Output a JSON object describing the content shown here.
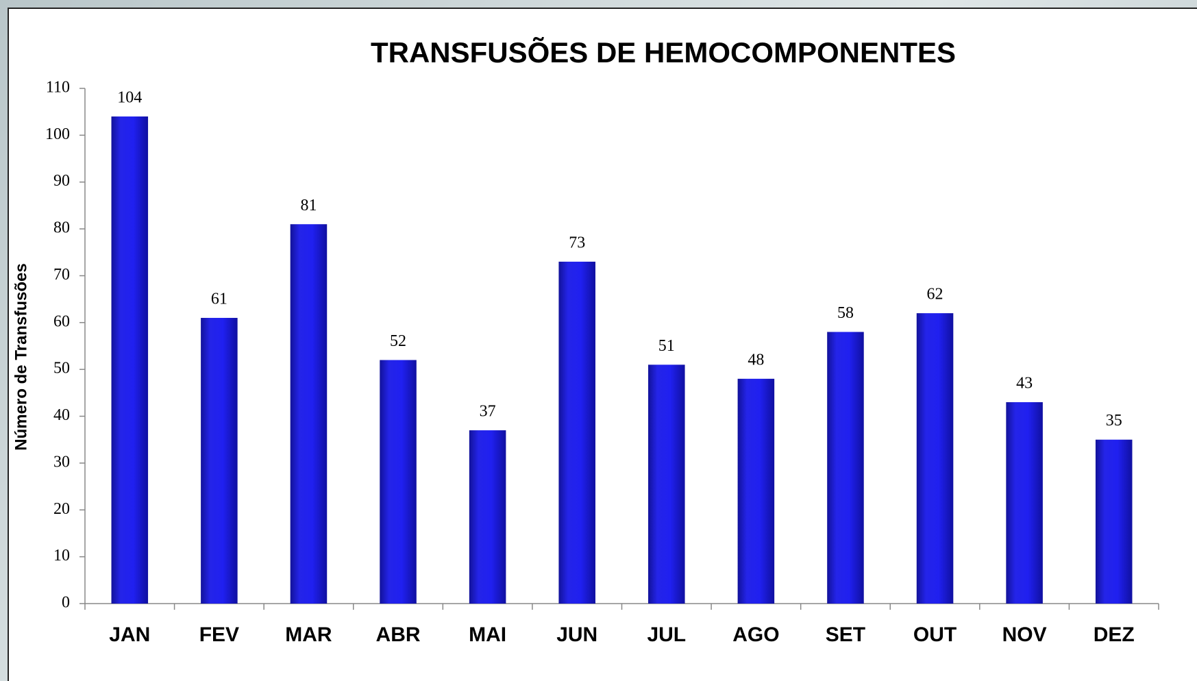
{
  "chart_data": {
    "type": "bar",
    "title": "TRANSFUSÕES DE HEMOCOMPONENTES",
    "y_label": "Número de Transfusões",
    "categories": [
      "JAN",
      "FEV",
      "MAR",
      "ABR",
      "MAI",
      "JUN",
      "JUL",
      "AGO",
      "SET",
      "OUT",
      "NOV",
      "DEZ"
    ],
    "values": [
      104,
      61,
      81,
      52,
      37,
      73,
      51,
      48,
      58,
      62,
      43,
      35
    ],
    "color": "#1c1ce0",
    "ylim": [
      0,
      110
    ],
    "yticks": [
      0,
      10,
      20,
      30,
      40,
      50,
      60,
      70,
      80,
      90,
      100,
      110
    ],
    "grid": false
  }
}
